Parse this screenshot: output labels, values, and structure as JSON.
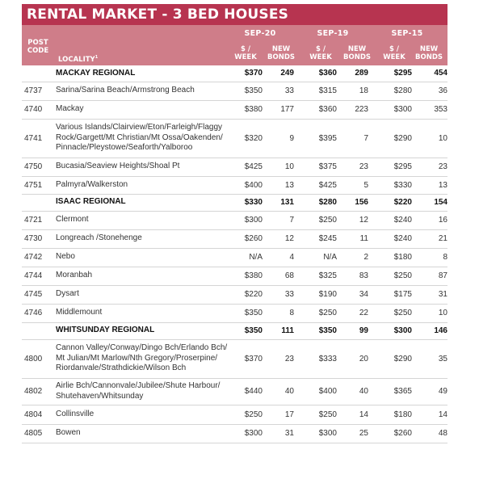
{
  "title": "RENTAL MARKET - 3 BED HOUSES",
  "headers": {
    "post_code": [
      "POST",
      "CODE"
    ],
    "locality": "LOCALITY",
    "locality_mark": "1",
    "periods": [
      "SEP-20",
      "SEP-19",
      "SEP-15"
    ],
    "price_label": [
      "$ /",
      "WEEK"
    ],
    "bonds_label": [
      "NEW",
      "BONDS"
    ]
  },
  "rows": [
    {
      "type": "region",
      "code": "",
      "locality": "MACKAY REGIONAL",
      "values": [
        "$370",
        "249",
        "$360",
        "289",
        "$295",
        "454"
      ]
    },
    {
      "type": "row",
      "code": "4737",
      "locality": "Sarina/Sarina Beach/Armstrong Beach",
      "values": [
        "$350",
        "33",
        "$315",
        "18",
        "$280",
        "36"
      ]
    },
    {
      "type": "row",
      "code": "4740",
      "locality": "Mackay",
      "values": [
        "$380",
        "177",
        "$360",
        "223",
        "$300",
        "353"
      ]
    },
    {
      "type": "row",
      "code": "4741",
      "locality": "Various Islands/Clairview/Eton/Farleigh/Flaggy Rock/Gargett/Mt Christian/Mt Ossa/Oakenden/ Pinnacle/Pleystowe/Seaforth/Yalboroo",
      "values": [
        "$320",
        "9",
        "$395",
        "7",
        "$290",
        "10"
      ]
    },
    {
      "type": "row",
      "code": "4750",
      "locality": "Bucasia/Seaview Heights/Shoal Pt",
      "values": [
        "$425",
        "10",
        "$375",
        "23",
        "$295",
        "23"
      ]
    },
    {
      "type": "row",
      "code": "4751",
      "locality": "Palmyra/Walkerston",
      "values": [
        "$400",
        "13",
        "$425",
        "5",
        "$330",
        "13"
      ]
    },
    {
      "type": "region",
      "code": "",
      "locality": "ISAAC REGIONAL",
      "values": [
        "$330",
        "131",
        "$280",
        "156",
        "$220",
        "154"
      ]
    },
    {
      "type": "row",
      "code": "4721",
      "locality": "Clermont",
      "values": [
        "$300",
        "7",
        "$250",
        "12",
        "$240",
        "16"
      ]
    },
    {
      "type": "row",
      "code": "4730",
      "locality": "Longreach /Stonehenge",
      "values": [
        "$260",
        "12",
        "$245",
        "11",
        "$240",
        "21"
      ]
    },
    {
      "type": "row",
      "code": "4742",
      "locality": "Nebo",
      "values": [
        "N/A",
        "4",
        "N/A",
        "2",
        "$180",
        "8"
      ]
    },
    {
      "type": "row",
      "code": "4744",
      "locality": "Moranbah",
      "values": [
        "$380",
        "68",
        "$325",
        "83",
        "$250",
        "87"
      ]
    },
    {
      "type": "row",
      "code": "4745",
      "locality": "Dysart",
      "values": [
        "$220",
        "33",
        "$190",
        "34",
        "$175",
        "31"
      ]
    },
    {
      "type": "row",
      "code": "4746",
      "locality": "Middlemount",
      "values": [
        "$350",
        "8",
        "$250",
        "22",
        "$250",
        "10"
      ]
    },
    {
      "type": "region",
      "code": "",
      "locality": "WHITSUNDAY REGIONAL",
      "values": [
        "$350",
        "111",
        "$350",
        "99",
        "$300",
        "146"
      ]
    },
    {
      "type": "row",
      "code": "4800",
      "locality": "Cannon Valley/Conway/Dingo Bch/Erlando Bch/ Mt Julian/Mt Marlow/Nth Gregory/Proserpine/ Riordanvale/Strathdickie/Wilson Bch",
      "values": [
        "$370",
        "23",
        "$333",
        "20",
        "$290",
        "35"
      ]
    },
    {
      "type": "row",
      "code": "4802",
      "locality": "Airlie Bch/Cannonvale/Jubilee/Shute Harbour/ Shutehaven/Whitsunday",
      "values": [
        "$440",
        "40",
        "$400",
        "40",
        "$365",
        "49"
      ]
    },
    {
      "type": "row",
      "code": "4804",
      "locality": "Collinsville",
      "values": [
        "$250",
        "17",
        "$250",
        "14",
        "$180",
        "14"
      ]
    },
    {
      "type": "row",
      "code": "4805",
      "locality": "Bowen",
      "values": [
        "$300",
        "31",
        "$300",
        "25",
        "$260",
        "48"
      ]
    }
  ]
}
